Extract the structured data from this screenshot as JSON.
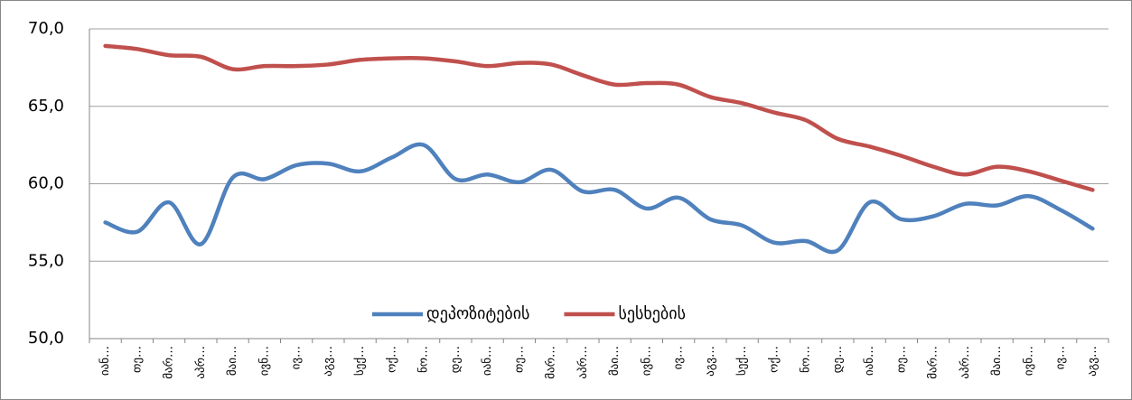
{
  "chart_data": {
    "type": "line",
    "categories": [
      "იან…",
      "თე…",
      "მარ…",
      "აპრ…",
      "მაი…",
      "ივნ…",
      "ივ…",
      "აგვ…",
      "სექ…",
      "ოქ…",
      "ნო…",
      "დე…",
      "იან…",
      "თე…",
      "მარ…",
      "აპრ…",
      "მაი…",
      "ივნ…",
      "ივ…",
      "აგვ…",
      "სექ…",
      "ოქ…",
      "ნო…",
      "დე…",
      "იან…",
      "თე…",
      "მარ…",
      "აპრ…",
      "მაი…",
      "ივნ…",
      "ივ…",
      "აგვ…"
    ],
    "series": [
      {
        "name": "დეპოზიტების",
        "color": "#4f81bd",
        "values": [
          57.5,
          56.9,
          58.8,
          56.1,
          60.4,
          60.3,
          61.2,
          61.3,
          60.8,
          61.7,
          62.5,
          60.3,
          60.6,
          60.1,
          60.9,
          59.5,
          59.6,
          58.4,
          59.1,
          57.7,
          57.3,
          56.2,
          56.3,
          55.7,
          58.8,
          57.7,
          57.9,
          58.7,
          58.6,
          59.2,
          58.3,
          57.1
        ]
      },
      {
        "name": "სესხების",
        "color": "#c0504d",
        "values": [
          68.9,
          68.7,
          68.3,
          68.2,
          67.4,
          67.6,
          67.6,
          67.7,
          68.0,
          68.1,
          68.1,
          67.9,
          67.6,
          67.8,
          67.7,
          67.0,
          66.4,
          66.5,
          66.4,
          65.6,
          65.2,
          64.6,
          64.1,
          62.9,
          62.4,
          61.8,
          61.1,
          60.6,
          61.1,
          60.8,
          60.2,
          59.6
        ]
      }
    ],
    "ylim": [
      50,
      70
    ],
    "yticks": [
      {
        "value": 50,
        "label": "50,0"
      },
      {
        "value": 55,
        "label": "55,0"
      },
      {
        "value": 60,
        "label": "60,0"
      },
      {
        "value": 65,
        "label": "65,0"
      },
      {
        "value": 70,
        "label": "70,0"
      }
    ],
    "grid": true,
    "legend": "bottom"
  }
}
